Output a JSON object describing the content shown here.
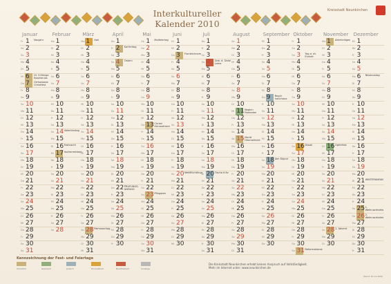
{
  "title_line1": "Interkultureller",
  "title_line2": "Kalender 2010",
  "city": "Kreisstadt Neunkirchen",
  "colors": {
    "christian": "#c9b17a",
    "islamic": "#8fb07a",
    "jewish": "#9cb0b8",
    "hindu": "#d9a23b",
    "buddhist": "#c75b3d",
    "other": "#b7b7b7",
    "sunday": "#c24a38"
  },
  "months": [
    {
      "name": "Januar",
      "entries": [
        {
          "d": 1,
          "txt": "Neujahr"
        },
        {
          "d": 6,
          "txt": "Hl. 3 Könige Epiphanias",
          "cat": "christian"
        },
        {
          "d": 7,
          "txt": "Orthodoxes Christfest",
          "cat": "christian"
        }
      ]
    },
    {
      "name": "Februar",
      "entries": [
        {
          "d": 14,
          "txt": "Valentinstag"
        },
        {
          "d": 16,
          "txt": "Fastnacht"
        },
        {
          "d": 17,
          "txt": "Aschermittwoch",
          "cat": "christian"
        }
      ]
    },
    {
      "name": "März",
      "entries": [
        {
          "d": 1,
          "txt": "Holi",
          "cat": "hindu"
        },
        {
          "d": 28,
          "txt": "Palmsonntag",
          "cat": "christian"
        }
      ]
    },
    {
      "name": "April",
      "entries": [
        {
          "d": 2,
          "txt": "Karfreitag",
          "cat": "christian"
        },
        {
          "d": 4,
          "txt": "Ostern",
          "cat": "christian"
        },
        {
          "d": 22,
          "txt": "PRÜFUNGS-ANFANG"
        }
      ]
    },
    {
      "name": "Mai",
      "entries": [
        {
          "d": 1,
          "txt": "Maifeiertag"
        },
        {
          "d": 13,
          "txt": "Christi Himmelfahrt",
          "cat": "christian"
        },
        {
          "d": 23,
          "txt": "Pfingsten",
          "cat": "christian"
        }
      ]
    },
    {
      "name": "Juni",
      "entries": [
        {
          "d": 3,
          "txt": "Fronleichnam",
          "cat": "christian"
        },
        {
          "d": 20,
          "txt": "Weltflüchtlingstag"
        }
      ]
    },
    {
      "name": "Juli",
      "entries": [
        {
          "d": 4,
          "txt": "Geb. d. Dalai Lama",
          "cat": "buddhist"
        },
        {
          "d": 20,
          "txt": "Tischa b'Av",
          "cat": "jewish"
        }
      ]
    },
    {
      "name": "August",
      "entries": [
        {
          "d": 11,
          "txt": "Beginn Ramadan",
          "cat": "islamic"
        },
        {
          "d": 15,
          "txt": "Mariä Himmelfahrt",
          "cat": "christian"
        }
      ]
    },
    {
      "name": "September",
      "entries": [
        {
          "d": 9,
          "txt": "Rosch haSchana",
          "cat": "jewish"
        },
        {
          "d": 18,
          "txt": "Jom Kippur",
          "cat": "jewish"
        }
      ]
    },
    {
      "name": "Oktober",
      "entries": [
        {
          "d": 3,
          "txt": "Tag d. dt. Einheit"
        },
        {
          "d": 16,
          "txt": "Diwali",
          "cat": "hindu"
        },
        {
          "d": 31,
          "txt": "Reformationstag",
          "cat": "christian"
        }
      ]
    },
    {
      "name": "November",
      "entries": [
        {
          "d": 1,
          "txt": "Allerheiligen",
          "cat": "christian"
        },
        {
          "d": 16,
          "txt": "Opferfest",
          "cat": "islamic"
        },
        {
          "d": 28,
          "txt": "1. Advent",
          "cat": "christian"
        }
      ]
    },
    {
      "name": "Dezember",
      "entries": [
        {
          "d": 6,
          "txt": "Nikolaustag"
        },
        {
          "d": 21,
          "txt": "WINTERANFANG"
        },
        {
          "d": 25,
          "txt": "1. Weihnachtsfeiertag",
          "cat": "christian"
        },
        {
          "d": 26,
          "txt": "2. Weihnachtsfeiertag",
          "cat": "christian"
        }
      ]
    }
  ],
  "legend": {
    "title": "Kennzeichnung der Fest- und Feiertage",
    "items": [
      {
        "label": "Christlich",
        "cat": "christian"
      },
      {
        "label": "Islamisch",
        "cat": "islamic"
      },
      {
        "label": "Jüdisch",
        "cat": "jewish"
      },
      {
        "label": "Hinduistisch",
        "cat": "hindu"
      },
      {
        "label": "Buddhistisch",
        "cat": "buddhist"
      },
      {
        "label": "Sonstige",
        "cat": "other"
      }
    ]
  },
  "footer": {
    "line1": "Die Kreisstadt Neunkirchen erhebt keinen Anspruch auf Vollständigkeit.",
    "line2": "Mehr im Internet unter: www.neunkirchen.de",
    "stand": "Stand: 01.11.2009"
  }
}
